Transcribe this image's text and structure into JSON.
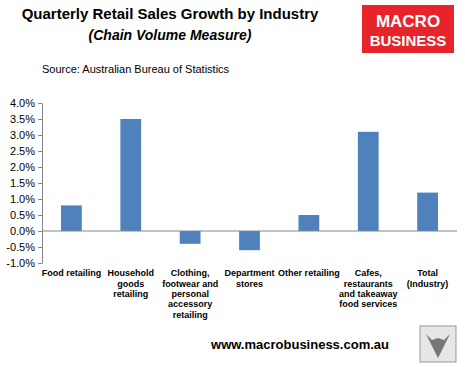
{
  "chart_data": {
    "type": "bar",
    "title": "Quarterly Retail Sales Growth by Industry",
    "subtitle": "(Chain Volume Measure)",
    "source": "Source: Australian Bureau of Statistics",
    "annotations": [
      "MACRO",
      "BUSINESS",
      "www.macrobusiness.com.au"
    ],
    "categories": [
      "Food retailing",
      "Household goods retailing",
      "Clothing, footwear and personal accessory retailing",
      "Department stores",
      "Other retailing",
      "Cafes, restaurants and takeaway food services",
      "Total (Industry)"
    ],
    "values": [
      0.8,
      3.5,
      -0.4,
      -0.6,
      0.5,
      3.1,
      1.2
    ],
    "color": "#4f81bd",
    "ylim": [
      -1,
      4
    ],
    "yticks": [
      {
        "value": -1,
        "label": "-1.0%"
      },
      {
        "value": -0.5,
        "label": "-0.5%"
      },
      {
        "value": 0,
        "label": "0.0%"
      },
      {
        "value": 0.5,
        "label": "0.5%"
      },
      {
        "value": 1,
        "label": "1.0%"
      },
      {
        "value": 1.5,
        "label": "1.5%"
      },
      {
        "value": 2,
        "label": "2.0%"
      },
      {
        "value": 2.5,
        "label": "2.5%"
      },
      {
        "value": 3,
        "label": "3.0%"
      },
      {
        "value": 3.5,
        "label": "3.5%"
      },
      {
        "value": 4,
        "label": "4.0%"
      }
    ],
    "grid": false
  }
}
